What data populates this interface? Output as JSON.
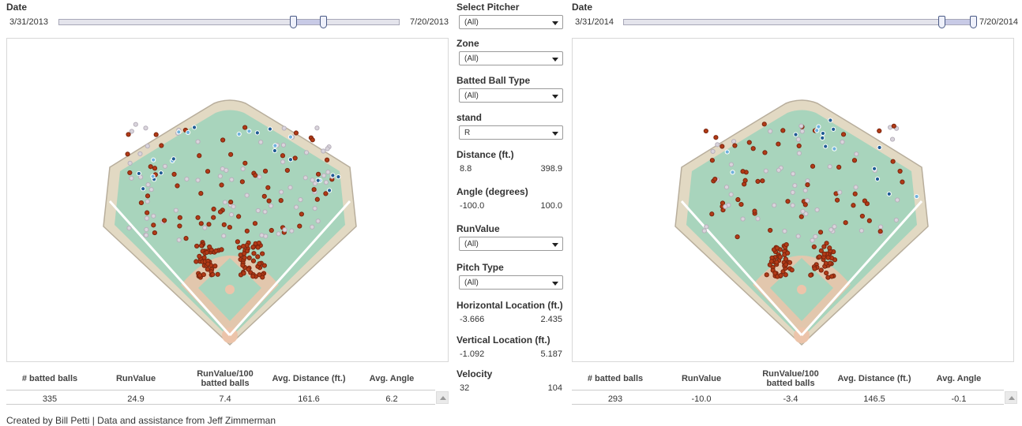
{
  "left_date": {
    "label": "Date",
    "start": "3/31/2013",
    "end": "7/20/2013"
  },
  "right_date": {
    "label": "Date",
    "start": "3/31/2014",
    "end": "7/20/2014"
  },
  "filters": [
    {
      "label": "Select Pitcher",
      "type": "dropdown",
      "value": "(All)"
    },
    {
      "label": "Zone",
      "type": "dropdown",
      "value": "(All)"
    },
    {
      "label": "Batted Ball Type",
      "type": "dropdown",
      "value": "(All)"
    },
    {
      "label": "stand",
      "type": "dropdown",
      "value": "R"
    },
    {
      "label": "Distance (ft.)",
      "type": "range",
      "min": "8.8",
      "max": "398.9"
    },
    {
      "label": "Angle (degrees)",
      "type": "range",
      "min": "-100.0",
      "max": "100.0"
    },
    {
      "label": "RunValue",
      "type": "dropdown",
      "value": "(All)"
    },
    {
      "label": "Pitch Type",
      "type": "dropdown",
      "value": "(All)"
    },
    {
      "label": "Horizontal Location (ft.)",
      "type": "range",
      "min": "-3.666",
      "max": "2.435"
    },
    {
      "label": "Vertical Location (ft.)",
      "type": "range",
      "min": "-1.092",
      "max": "5.187"
    },
    {
      "label": "Velocity",
      "type": "range",
      "min": "32",
      "max": "104"
    }
  ],
  "summary_headers": [
    "# batted balls",
    "RunValue",
    "RunValue/100 batted balls",
    "Avg. Distance (ft.)",
    "Avg. Angle"
  ],
  "left_summary": [
    "335",
    "24.9",
    "7.4",
    "161.6",
    "6.2"
  ],
  "right_summary": [
    "293",
    "-10.0",
    "-3.4",
    "146.5",
    "-0.1"
  ],
  "footer": "Created by Bill Petti | Data and assistance from Jeff Zimmerman",
  "colors": {
    "field_grass": "#a8d4bc",
    "field_dirt": "#e2d9c3",
    "hit": "#b23a16",
    "out_light": "#d9d4dc",
    "hr_blue": "#1f5b94",
    "light_blue": "#6fb1dc"
  }
}
